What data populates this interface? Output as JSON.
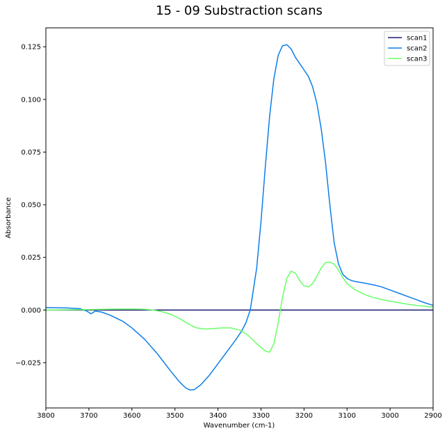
{
  "chart_data": {
    "type": "line",
    "title": "15 - 09 Substraction scans",
    "xlabel": "Wavenumber (cm-1)",
    "ylabel": "Absorbance",
    "xlim": [
      3800,
      2900
    ],
    "ylim": [
      -0.0465,
      0.134
    ],
    "x_reversed": true,
    "xticks": [
      3800,
      3700,
      3600,
      3500,
      3400,
      3300,
      3200,
      3100,
      3000,
      2900
    ],
    "yticks": [
      -0.025,
      0.0,
      0.025,
      0.05,
      0.075,
      0.1,
      0.125
    ],
    "ytick_labels": [
      "−0.025",
      "0.000",
      "0.025",
      "0.050",
      "0.075",
      "0.100",
      "0.125"
    ],
    "grid": false,
    "legend": "top-right",
    "series": [
      {
        "name": "scan1",
        "color": "#1a1a6e",
        "x": [
          3800,
          2900
        ],
        "y": [
          0.0,
          0.0
        ]
      },
      {
        "name": "scan2",
        "color": "#0a7ee8",
        "x": [
          3800,
          3750,
          3720,
          3705,
          3695,
          3685,
          3670,
          3650,
          3620,
          3600,
          3570,
          3540,
          3510,
          3490,
          3475,
          3465,
          3455,
          3440,
          3420,
          3400,
          3380,
          3360,
          3345,
          3335,
          3325,
          3310,
          3300,
          3290,
          3280,
          3270,
          3260,
          3250,
          3240,
          3230,
          3220,
          3210,
          3200,
          3190,
          3180,
          3170,
          3160,
          3150,
          3140,
          3130,
          3120,
          3110,
          3100,
          3090,
          3080,
          3060,
          3040,
          3020,
          3000,
          2980,
          2960,
          2940,
          2920,
          2900
        ],
        "y": [
          0.0012,
          0.001,
          0.0006,
          -0.0005,
          -0.0018,
          -0.0005,
          -0.001,
          -0.0025,
          -0.0055,
          -0.0085,
          -0.014,
          -0.021,
          -0.029,
          -0.034,
          -0.037,
          -0.038,
          -0.0378,
          -0.0355,
          -0.031,
          -0.0255,
          -0.02,
          -0.0145,
          -0.01,
          -0.006,
          0.0,
          0.02,
          0.042,
          0.068,
          0.092,
          0.11,
          0.121,
          0.1255,
          0.126,
          0.124,
          0.12,
          0.117,
          0.114,
          0.111,
          0.106,
          0.098,
          0.086,
          0.07,
          0.05,
          0.032,
          0.022,
          0.017,
          0.015,
          0.014,
          0.0135,
          0.0128,
          0.012,
          0.011,
          0.0095,
          0.008,
          0.0065,
          0.005,
          0.0035,
          0.0022
        ]
      },
      {
        "name": "scan3",
        "color": "#66ff66",
        "x": [
          3800,
          3750,
          3700,
          3650,
          3600,
          3570,
          3550,
          3530,
          3510,
          3490,
          3470,
          3450,
          3430,
          3410,
          3390,
          3370,
          3350,
          3330,
          3310,
          3290,
          3280,
          3270,
          3260,
          3250,
          3240,
          3230,
          3220,
          3210,
          3200,
          3190,
          3180,
          3170,
          3160,
          3150,
          3140,
          3130,
          3120,
          3110,
          3100,
          3080,
          3060,
          3040,
          3020,
          3000,
          2980,
          2960,
          2940,
          2920,
          2900
        ],
        "y": [
          0.0,
          0.0001,
          0.0002,
          0.0004,
          0.0005,
          0.0003,
          0.0,
          -0.0008,
          -0.002,
          -0.004,
          -0.0065,
          -0.0085,
          -0.009,
          -0.0088,
          -0.0085,
          -0.0085,
          -0.0095,
          -0.012,
          -0.016,
          -0.0195,
          -0.02,
          -0.016,
          -0.006,
          0.006,
          0.015,
          0.0185,
          0.0175,
          0.014,
          0.0115,
          0.011,
          0.0125,
          0.016,
          0.02,
          0.0225,
          0.0228,
          0.0218,
          0.019,
          0.0155,
          0.0125,
          0.0095,
          0.0075,
          0.006,
          0.005,
          0.0042,
          0.0035,
          0.0028,
          0.0022,
          0.0018,
          0.0013
        ]
      }
    ]
  }
}
